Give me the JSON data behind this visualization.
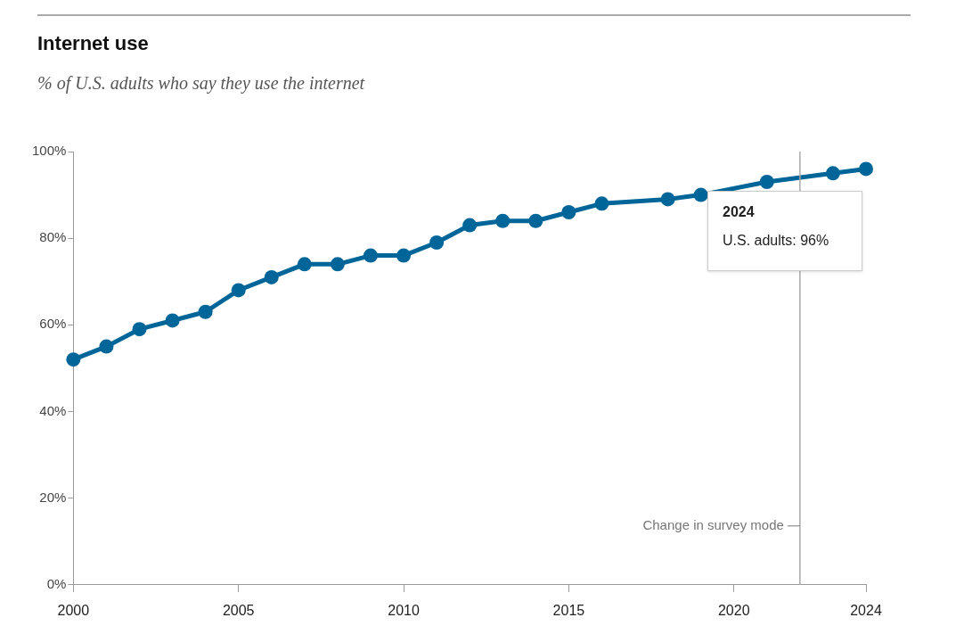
{
  "chart_data": {
    "type": "line",
    "title": "Internet use",
    "subtitle": "% of U.S. adults who say they use the internet",
    "x": [
      2000,
      2001,
      2002,
      2003,
      2004,
      2005,
      2006,
      2007,
      2008,
      2009,
      2010,
      2011,
      2012,
      2013,
      2014,
      2015,
      2016,
      2018,
      2019,
      2021,
      2023,
      2024
    ],
    "series": [
      {
        "color": "#006699",
        "values": [
          52,
          55,
          59,
          61,
          63,
          68,
          71,
          74,
          74,
          76,
          76,
          79,
          83,
          84,
          84,
          86,
          88,
          89,
          90,
          93,
          95,
          96
        ]
      }
    ],
    "xlim": [
      2000,
      2024
    ],
    "xticks": [
      2000,
      2005,
      2010,
      2015,
      2020,
      2024
    ],
    "ylim": [
      0,
      100
    ],
    "yticks": [
      {
        "value": 0,
        "label": "0%"
      },
      {
        "value": 20,
        "label": "20%"
      },
      {
        "value": 40,
        "label": "40%"
      },
      {
        "value": 60,
        "label": "60%"
      },
      {
        "value": 80,
        "label": "80%"
      },
      {
        "value": 100,
        "label": "100%"
      }
    ],
    "marker": "circle",
    "ref_lines": [
      {
        "axis": "x",
        "value": 2022,
        "label": "Change in survey mode",
        "color": "#aaaaaa"
      }
    ],
    "annotations": [
      "2024",
      "U.S. adults: 96%"
    ]
  }
}
